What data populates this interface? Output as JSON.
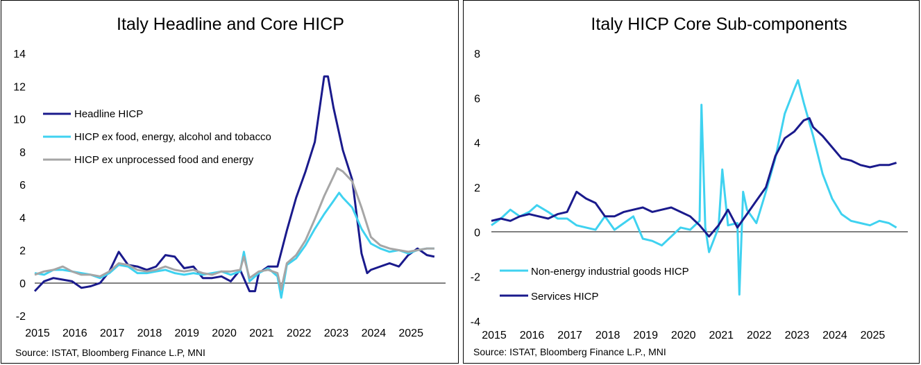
{
  "colors": {
    "dark_navy": "#1a1a8c",
    "cyan": "#3fd2f0",
    "grey": "#a6a6a6"
  },
  "chart_data": [
    {
      "type": "line",
      "title": "Italy Headline and Core HICP",
      "xlabel": "",
      "ylabel": "",
      "xlim": [
        2015,
        2026
      ],
      "ylim": [
        -2,
        14
      ],
      "yticks": [
        -2,
        0,
        2,
        4,
        6,
        8,
        10,
        12,
        14
      ],
      "xticks": [
        2015,
        2016,
        2017,
        2018,
        2019,
        2020,
        2021,
        2022,
        2023,
        2024,
        2025
      ],
      "grid": false,
      "legend_position": "upper-left",
      "source": "Source: ISTAT,  Bloomberg Finance L.P, MNI",
      "series": [
        {
          "name": "Headline HICP",
          "color": "#1a1a8c",
          "points": [
            [
              2015.0,
              -0.5
            ],
            [
              2015.25,
              0.1
            ],
            [
              2015.5,
              0.3
            ],
            [
              2015.75,
              0.2
            ],
            [
              2016.0,
              0.1
            ],
            [
              2016.25,
              -0.3
            ],
            [
              2016.5,
              -0.2
            ],
            [
              2016.75,
              0.0
            ],
            [
              2017.0,
              0.7
            ],
            [
              2017.25,
              1.9
            ],
            [
              2017.5,
              1.1
            ],
            [
              2017.75,
              1.0
            ],
            [
              2018.0,
              0.8
            ],
            [
              2018.25,
              1.0
            ],
            [
              2018.5,
              1.7
            ],
            [
              2018.75,
              1.6
            ],
            [
              2019.0,
              0.9
            ],
            [
              2019.25,
              1.0
            ],
            [
              2019.5,
              0.3
            ],
            [
              2019.75,
              0.3
            ],
            [
              2020.0,
              0.4
            ],
            [
              2020.25,
              0.1
            ],
            [
              2020.5,
              0.8
            ],
            [
              2020.75,
              -0.5
            ],
            [
              2020.9,
              -0.5
            ],
            [
              2021.0,
              0.6
            ],
            [
              2021.25,
              1.0
            ],
            [
              2021.5,
              1.0
            ],
            [
              2021.75,
              3.2
            ],
            [
              2022.0,
              5.2
            ],
            [
              2022.25,
              6.8
            ],
            [
              2022.5,
              8.6
            ],
            [
              2022.75,
              12.6
            ],
            [
              2022.85,
              12.6
            ],
            [
              2023.0,
              10.7
            ],
            [
              2023.25,
              8.1
            ],
            [
              2023.5,
              6.3
            ],
            [
              2023.75,
              1.8
            ],
            [
              2023.9,
              0.6
            ],
            [
              2024.0,
              0.8
            ],
            [
              2024.25,
              1.0
            ],
            [
              2024.5,
              1.2
            ],
            [
              2024.75,
              1.0
            ],
            [
              2025.0,
              1.7
            ],
            [
              2025.25,
              2.1
            ],
            [
              2025.5,
              1.7
            ],
            [
              2025.7,
              1.6
            ]
          ]
        },
        {
          "name": "HICP ex food, energy, alcohol and tobacco",
          "color": "#3fd2f0",
          "points": [
            [
              2015.0,
              0.6
            ],
            [
              2015.25,
              0.5
            ],
            [
              2015.5,
              0.8
            ],
            [
              2015.75,
              0.8
            ],
            [
              2016.0,
              0.7
            ],
            [
              2016.25,
              0.6
            ],
            [
              2016.5,
              0.5
            ],
            [
              2016.75,
              0.3
            ],
            [
              2017.0,
              0.6
            ],
            [
              2017.25,
              1.1
            ],
            [
              2017.5,
              1.0
            ],
            [
              2017.75,
              0.6
            ],
            [
              2018.0,
              0.6
            ],
            [
              2018.25,
              0.7
            ],
            [
              2018.5,
              0.8
            ],
            [
              2018.75,
              0.6
            ],
            [
              2019.0,
              0.5
            ],
            [
              2019.25,
              0.6
            ],
            [
              2019.5,
              0.5
            ],
            [
              2019.75,
              0.6
            ],
            [
              2020.0,
              0.7
            ],
            [
              2020.25,
              0.5
            ],
            [
              2020.5,
              0.7
            ],
            [
              2020.6,
              1.9
            ],
            [
              2020.75,
              0.1
            ],
            [
              2021.0,
              0.6
            ],
            [
              2021.25,
              0.9
            ],
            [
              2021.5,
              0.4
            ],
            [
              2021.6,
              -0.9
            ],
            [
              2021.75,
              1.1
            ],
            [
              2022.0,
              1.5
            ],
            [
              2022.25,
              2.3
            ],
            [
              2022.5,
              3.3
            ],
            [
              2022.75,
              4.2
            ],
            [
              2023.0,
              5.0
            ],
            [
              2023.15,
              5.5
            ],
            [
              2023.25,
              5.2
            ],
            [
              2023.5,
              4.6
            ],
            [
              2023.75,
              3.3
            ],
            [
              2024.0,
              2.4
            ],
            [
              2024.25,
              2.1
            ],
            [
              2024.5,
              1.9
            ],
            [
              2024.75,
              2.0
            ],
            [
              2025.0,
              1.8
            ],
            [
              2025.25,
              2.0
            ],
            [
              2025.5,
              2.1
            ],
            [
              2025.7,
              2.1
            ]
          ]
        },
        {
          "name": "HICP ex unprocessed food and energy",
          "color": "#a6a6a6",
          "points": [
            [
              2015.0,
              0.5
            ],
            [
              2015.25,
              0.7
            ],
            [
              2015.5,
              0.8
            ],
            [
              2015.75,
              1.0
            ],
            [
              2016.0,
              0.7
            ],
            [
              2016.25,
              0.5
            ],
            [
              2016.5,
              0.5
            ],
            [
              2016.75,
              0.4
            ],
            [
              2017.0,
              0.7
            ],
            [
              2017.25,
              1.2
            ],
            [
              2017.5,
              1.1
            ],
            [
              2017.75,
              0.8
            ],
            [
              2018.0,
              0.7
            ],
            [
              2018.25,
              0.8
            ],
            [
              2018.5,
              1.0
            ],
            [
              2018.75,
              0.8
            ],
            [
              2019.0,
              0.7
            ],
            [
              2019.25,
              0.8
            ],
            [
              2019.5,
              0.6
            ],
            [
              2019.75,
              0.5
            ],
            [
              2020.0,
              0.7
            ],
            [
              2020.25,
              0.7
            ],
            [
              2020.5,
              0.8
            ],
            [
              2020.6,
              1.6
            ],
            [
              2020.75,
              0.3
            ],
            [
              2021.0,
              0.7
            ],
            [
              2021.25,
              0.8
            ],
            [
              2021.5,
              0.6
            ],
            [
              2021.6,
              -0.4
            ],
            [
              2021.75,
              1.2
            ],
            [
              2022.0,
              1.7
            ],
            [
              2022.25,
              2.6
            ],
            [
              2022.5,
              3.9
            ],
            [
              2022.75,
              5.3
            ],
            [
              2023.0,
              6.5
            ],
            [
              2023.1,
              7.0
            ],
            [
              2023.25,
              6.8
            ],
            [
              2023.5,
              6.2
            ],
            [
              2023.75,
              4.6
            ],
            [
              2024.0,
              2.8
            ],
            [
              2024.25,
              2.3
            ],
            [
              2024.5,
              2.1
            ],
            [
              2024.75,
              2.0
            ],
            [
              2025.0,
              1.9
            ],
            [
              2025.25,
              2.0
            ],
            [
              2025.5,
              2.1
            ],
            [
              2025.7,
              2.1
            ]
          ]
        }
      ]
    },
    {
      "type": "line",
      "title": "Italy HICP Core Sub-components",
      "xlabel": "",
      "ylabel": "",
      "xlim": [
        2015,
        2026
      ],
      "ylim": [
        -4,
        8
      ],
      "yticks": [
        -4,
        -2,
        0,
        2,
        4,
        6,
        8
      ],
      "xticks": [
        2015,
        2016,
        2017,
        2018,
        2019,
        2020,
        2021,
        2022,
        2023,
        2024,
        2025
      ],
      "grid": false,
      "legend_position": "lower-left",
      "source": "Source: ISTAT,  Bloomberg Finance L.P., MNI",
      "series": [
        {
          "name": "Non-energy industrial goods HICP",
          "color": "#3fd2f0",
          "points": [
            [
              2015.0,
              0.3
            ],
            [
              2015.25,
              0.6
            ],
            [
              2015.5,
              1.0
            ],
            [
              2015.75,
              0.7
            ],
            [
              2016.0,
              0.9
            ],
            [
              2016.2,
              1.2
            ],
            [
              2016.5,
              0.9
            ],
            [
              2016.75,
              0.6
            ],
            [
              2017.0,
              0.6
            ],
            [
              2017.25,
              0.3
            ],
            [
              2017.5,
              0.2
            ],
            [
              2017.75,
              0.1
            ],
            [
              2018.0,
              0.7
            ],
            [
              2018.25,
              0.1
            ],
            [
              2018.5,
              0.4
            ],
            [
              2018.75,
              0.7
            ],
            [
              2019.0,
              -0.3
            ],
            [
              2019.25,
              -0.4
            ],
            [
              2019.5,
              -0.6
            ],
            [
              2019.75,
              -0.2
            ],
            [
              2020.0,
              0.2
            ],
            [
              2020.25,
              0.1
            ],
            [
              2020.5,
              0.5
            ],
            [
              2020.55,
              5.7
            ],
            [
              2020.65,
              0.2
            ],
            [
              2020.75,
              -0.9
            ],
            [
              2021.0,
              0.2
            ],
            [
              2021.1,
              2.8
            ],
            [
              2021.25,
              0.3
            ],
            [
              2021.5,
              0.4
            ],
            [
              2021.55,
              -2.8
            ],
            [
              2021.65,
              1.8
            ],
            [
              2021.75,
              1.0
            ],
            [
              2022.0,
              0.4
            ],
            [
              2022.25,
              1.8
            ],
            [
              2022.5,
              3.3
            ],
            [
              2022.75,
              5.3
            ],
            [
              2023.0,
              6.4
            ],
            [
              2023.1,
              6.8
            ],
            [
              2023.25,
              5.8
            ],
            [
              2023.5,
              4.3
            ],
            [
              2023.75,
              2.6
            ],
            [
              2024.0,
              1.5
            ],
            [
              2024.25,
              0.8
            ],
            [
              2024.5,
              0.5
            ],
            [
              2024.75,
              0.4
            ],
            [
              2025.0,
              0.3
            ],
            [
              2025.25,
              0.5
            ],
            [
              2025.5,
              0.4
            ],
            [
              2025.7,
              0.2
            ]
          ]
        },
        {
          "name": "Services HICP",
          "color": "#1a1a8c",
          "points": [
            [
              2015.0,
              0.5
            ],
            [
              2015.25,
              0.6
            ],
            [
              2015.5,
              0.5
            ],
            [
              2015.75,
              0.7
            ],
            [
              2016.0,
              0.8
            ],
            [
              2016.25,
              0.7
            ],
            [
              2016.5,
              0.6
            ],
            [
              2016.75,
              0.8
            ],
            [
              2017.0,
              0.9
            ],
            [
              2017.25,
              1.8
            ],
            [
              2017.5,
              1.5
            ],
            [
              2017.75,
              1.3
            ],
            [
              2018.0,
              0.7
            ],
            [
              2018.25,
              0.7
            ],
            [
              2018.5,
              0.9
            ],
            [
              2018.75,
              1.0
            ],
            [
              2019.0,
              1.1
            ],
            [
              2019.25,
              0.9
            ],
            [
              2019.5,
              1.0
            ],
            [
              2019.75,
              1.1
            ],
            [
              2020.0,
              0.9
            ],
            [
              2020.25,
              0.7
            ],
            [
              2020.5,
              0.3
            ],
            [
              2020.75,
              -0.2
            ],
            [
              2021.0,
              0.3
            ],
            [
              2021.25,
              1.0
            ],
            [
              2021.5,
              0.2
            ],
            [
              2021.75,
              0.8
            ],
            [
              2022.0,
              1.4
            ],
            [
              2022.25,
              2.0
            ],
            [
              2022.5,
              3.4
            ],
            [
              2022.75,
              4.2
            ],
            [
              2023.0,
              4.5
            ],
            [
              2023.25,
              5.0
            ],
            [
              2023.4,
              5.1
            ],
            [
              2023.5,
              4.7
            ],
            [
              2023.75,
              4.3
            ],
            [
              2024.0,
              3.8
            ],
            [
              2024.25,
              3.3
            ],
            [
              2024.5,
              3.2
            ],
            [
              2024.75,
              3.0
            ],
            [
              2025.0,
              2.9
            ],
            [
              2025.25,
              3.0
            ],
            [
              2025.5,
              3.0
            ],
            [
              2025.7,
              3.1
            ]
          ]
        }
      ]
    }
  ]
}
